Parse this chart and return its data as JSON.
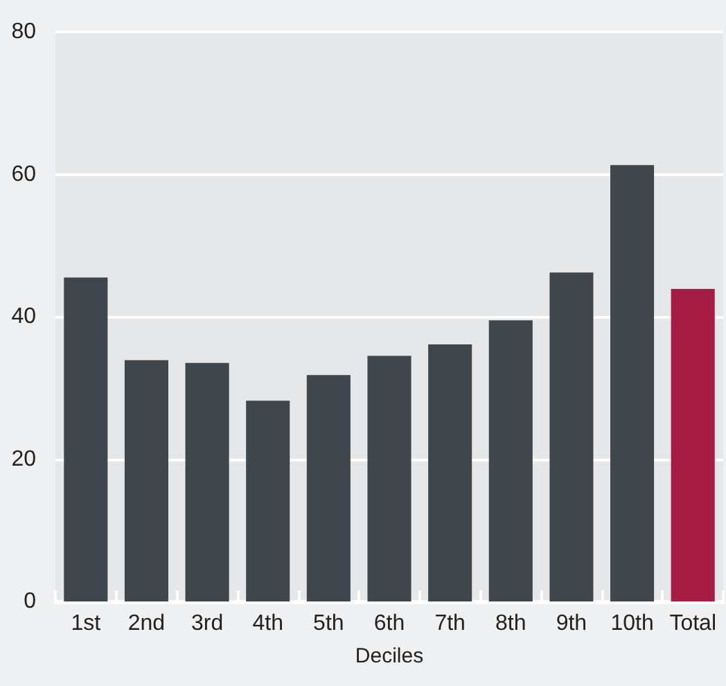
{
  "chart_data": {
    "type": "bar",
    "xlabel": "Deciles",
    "categories": [
      "1st",
      "2nd",
      "3rd",
      "4th",
      "5th",
      "6th",
      "7th",
      "8th",
      "9th",
      "10th",
      "Total"
    ],
    "values": [
      45.5,
      33.9,
      33.5,
      28.2,
      31.8,
      34.5,
      36.1,
      39.5,
      46.2,
      61.3,
      43.9
    ],
    "colors": [
      "#3f474d",
      "#3f474d",
      "#3f474d",
      "#3f474d",
      "#3f474d",
      "#3f474d",
      "#3f474d",
      "#3f474d",
      "#3f474d",
      "#3f474d",
      "#a51c45"
    ],
    "ylim": [
      0,
      80
    ],
    "yticks": [
      0,
      20,
      40,
      60,
      80
    ],
    "grid": "y"
  }
}
